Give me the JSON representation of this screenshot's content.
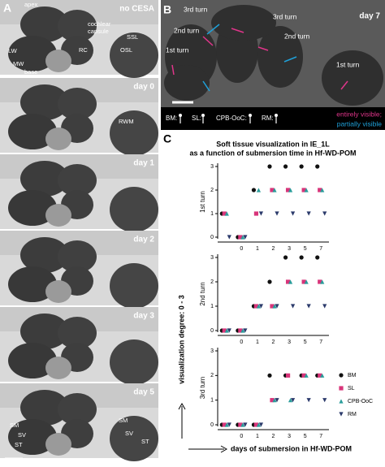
{
  "figure": {
    "panel_a": {
      "letter": "A",
      "panels": [
        {
          "label": "no CESA",
          "annotations": [
            "apex",
            "cochlear",
            "capsule",
            "SSL",
            "LW",
            "MW",
            "RC",
            "OSL",
            "base"
          ]
        },
        {
          "label": "day 0",
          "annotations": [
            "RWM"
          ]
        },
        {
          "label": "day 1",
          "annotations": []
        },
        {
          "label": "day 2",
          "annotations": []
        },
        {
          "label": "day 3",
          "annotations": []
        },
        {
          "label": "day 5",
          "annotations": [
            "SM",
            "SV",
            "ST",
            "SM",
            "SV",
            "ST"
          ]
        }
      ]
    },
    "panel_b": {
      "letter": "B",
      "label": "day 7",
      "annotations": [
        "3rd turn",
        "3rd turn",
        "2nd turn",
        "2nd turn",
        "1st turn",
        "1st turn"
      ],
      "legend": [
        "BM:",
        "SL:",
        "CPB-OoC:",
        "RM:"
      ],
      "visibility": [
        {
          "text": "entirely visible;",
          "color": "#e0358a"
        },
        {
          "text": "partially visible",
          "color": "#1fa0d8"
        }
      ]
    },
    "panel_c": {
      "letter": "C",
      "title": [
        "Soft tissue visualization in IE_1L",
        "as a function of submersion time in Hf-WD-POM"
      ],
      "ylabel": "visualization degree: 0 - 3",
      "xlabel": "days of submersion in Hf-WD-POM"
    }
  },
  "chart_data": [
    {
      "type": "dot",
      "title": "1st turn",
      "categories": [
        null,
        "0",
        "1",
        "2",
        "3",
        "5",
        "7"
      ],
      "series": [
        {
          "color": "#111111",
          "marker": "circle",
          "values": [
            1,
            0,
            2,
            3,
            3,
            3,
            3
          ]
        },
        {
          "color": "#d8357a",
          "marker": "square",
          "values": [
            1,
            0,
            1,
            2,
            2,
            2,
            2
          ]
        },
        {
          "color": "#2a9d9b",
          "marker": "triangle",
          "values": [
            1,
            0,
            2,
            2,
            2,
            2,
            2
          ]
        },
        {
          "color": "#2b3a6b",
          "marker": "triangle-down",
          "values": [
            0,
            0,
            1,
            1,
            1,
            1,
            1
          ]
        }
      ],
      "ylim": [
        0,
        3
      ],
      "yticks": [
        0,
        1,
        2,
        3
      ]
    },
    {
      "type": "dot",
      "title": "2nd turn",
      "categories": [
        null,
        "0",
        "1",
        "2",
        "3",
        "5",
        "7"
      ],
      "series": [
        {
          "color": "#111111",
          "marker": "circle",
          "values": [
            0,
            0,
            1,
            2,
            3,
            3,
            3
          ]
        },
        {
          "color": "#d8357a",
          "marker": "square",
          "values": [
            0,
            0,
            1,
            1,
            2,
            2,
            2
          ]
        },
        {
          "color": "#2a9d9b",
          "marker": "triangle",
          "values": [
            0,
            0,
            1,
            1,
            2,
            2,
            2
          ]
        },
        {
          "color": "#2b3a6b",
          "marker": "triangle-down",
          "values": [
            0,
            0,
            1,
            1,
            1,
            1,
            1
          ]
        }
      ],
      "ylim": [
        0,
        3
      ],
      "yticks": [
        0,
        1,
        2,
        3
      ]
    },
    {
      "type": "dot",
      "title": "3rd turn",
      "categories": [
        null,
        "0",
        "1",
        "2",
        "3",
        "5",
        "7"
      ],
      "series": [
        {
          "name": "BM",
          "color": "#111111",
          "marker": "circle",
          "values": [
            0,
            0,
            0,
            2,
            2,
            2,
            2
          ]
        },
        {
          "name": "SL",
          "color": "#d8357a",
          "marker": "square",
          "values": [
            0,
            0,
            0,
            1,
            2,
            2,
            2
          ]
        },
        {
          "name": "CPB-OoC",
          "color": "#2a9d9b",
          "marker": "triangle",
          "values": [
            0,
            0,
            0,
            1,
            1,
            2,
            2
          ]
        },
        {
          "name": "RM",
          "color": "#2b3a6b",
          "marker": "triangle-down",
          "values": [
            0,
            0,
            0,
            1,
            1,
            1,
            1
          ]
        }
      ],
      "ylim": [
        0,
        3
      ],
      "yticks": [
        0,
        1,
        2,
        3
      ],
      "legend": "right"
    }
  ]
}
